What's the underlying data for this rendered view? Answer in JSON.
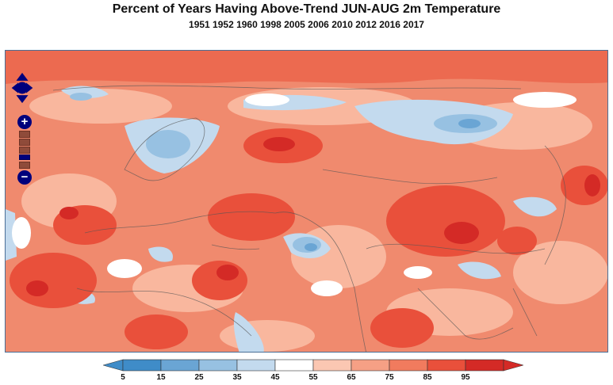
{
  "header": {
    "title": "Percent of Years Having Above-Trend JUN-AUG 2m Temperature",
    "subtitle": "1951 1952 1960 1998 2005 2006 2010 2012 2016 2017"
  },
  "map_controls": {
    "pan_icon": "pan-arrows-icon",
    "zoom_in_label": "+",
    "zoom_out_label": "−"
  },
  "legend": {
    "ticks": [
      "5",
      "15",
      "25",
      "35",
      "45",
      "55",
      "65",
      "75",
      "85",
      "95"
    ],
    "colors": [
      "#3f8cc8",
      "#6aa5d4",
      "#97c1e2",
      "#c3daee",
      "#ffffff",
      "#fbc7b2",
      "#f6a085",
      "#f17b5e",
      "#e9503b",
      "#d42a26"
    ]
  }
}
